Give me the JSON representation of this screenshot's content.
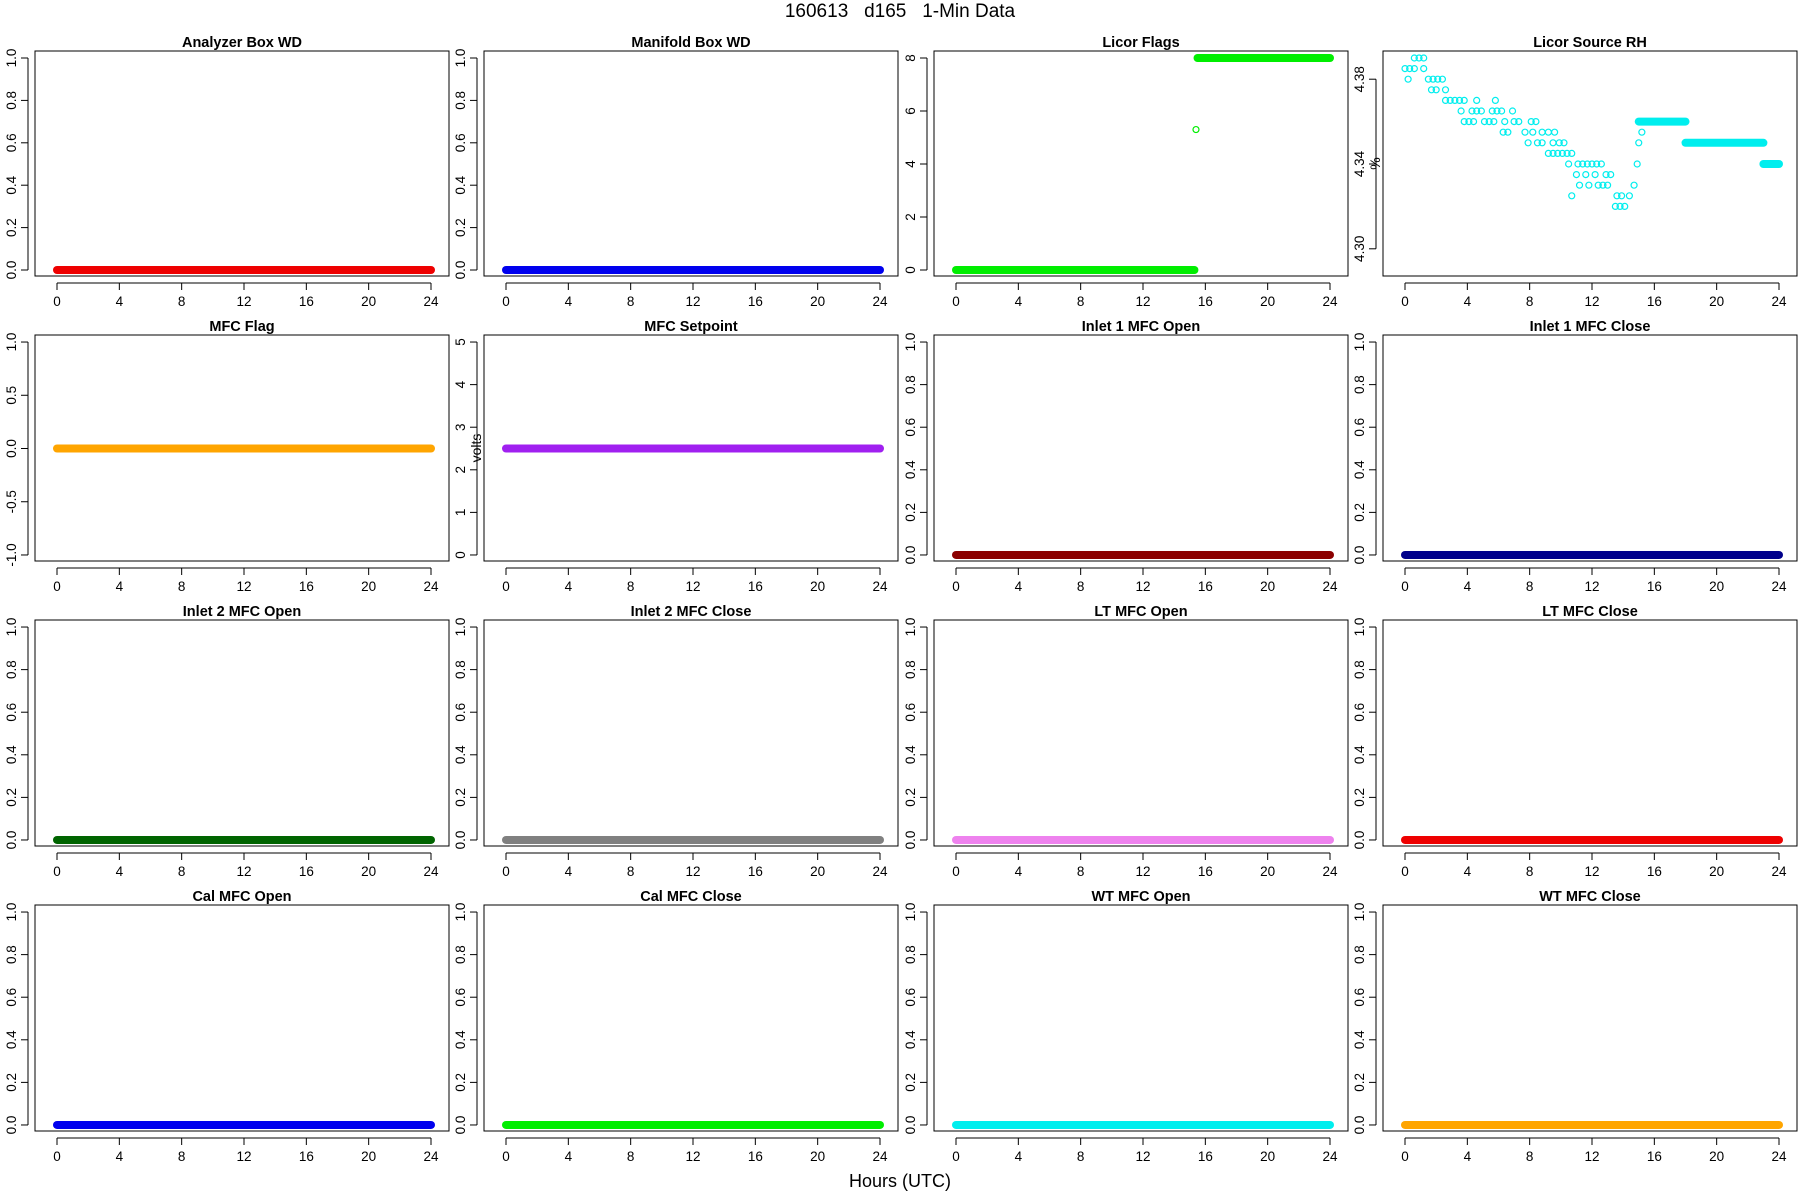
{
  "title": "160613   d165   1-Min Data",
  "x_axis_title": "Hours (UTC)",
  "chart_data": [
    {
      "type": "scatter",
      "title": "Analyzer Box WD",
      "ylabel": "",
      "color": "#ee0000",
      "xlim": [
        0,
        24
      ],
      "ylim": [
        0,
        1
      ],
      "yticks": [
        "0.0",
        "0.2",
        "0.4",
        "0.6",
        "0.8",
        "1.0"
      ],
      "xticks": [
        "0",
        "4",
        "8",
        "12",
        "16",
        "20",
        "24"
      ],
      "segments": [
        {
          "x0": 0,
          "x1": 24,
          "y": 0
        }
      ],
      "points": []
    },
    {
      "type": "scatter",
      "title": "Manifold Box WD",
      "ylabel": "",
      "color": "#0000ee",
      "xlim": [
        0,
        24
      ],
      "ylim": [
        0,
        1
      ],
      "yticks": [
        "0.0",
        "0.2",
        "0.4",
        "0.6",
        "0.8",
        "1.0"
      ],
      "xticks": [
        "0",
        "4",
        "8",
        "12",
        "16",
        "20",
        "24"
      ],
      "segments": [
        {
          "x0": 0,
          "x1": 24,
          "y": 0
        }
      ],
      "points": []
    },
    {
      "type": "scatter",
      "title": "Licor Flags",
      "ylabel": "",
      "color": "#00ee00",
      "xlim": [
        0,
        24
      ],
      "ylim": [
        0,
        8
      ],
      "yticks": [
        "0",
        "2",
        "4",
        "6",
        "8"
      ],
      "xticks": [
        "0",
        "4",
        "8",
        "12",
        "16",
        "20",
        "24"
      ],
      "segments": [
        {
          "x0": 0,
          "x1": 15.3,
          "y": 0
        },
        {
          "x0": 15.5,
          "x1": 24,
          "y": 8
        }
      ],
      "points": [
        {
          "x": 15.4,
          "y": 5.3
        }
      ]
    },
    {
      "type": "scatter",
      "title": "Licor Source RH",
      "ylabel": "%",
      "color": "#00eeee",
      "xlim": [
        0,
        24
      ],
      "ylim": [
        4.29,
        4.39
      ],
      "yticks": [
        "4.30",
        "4.34",
        "4.38"
      ],
      "xticks": [
        "0",
        "4",
        "8",
        "12",
        "16",
        "20",
        "24"
      ],
      "segments": [
        {
          "x0": 15,
          "x1": 18,
          "y": 4.36
        },
        {
          "x0": 18,
          "x1": 23,
          "y": 4.35
        },
        {
          "x0": 23,
          "x1": 24,
          "y": 4.34
        }
      ],
      "points": [
        {
          "x": 0,
          "y": 4.385
        },
        {
          "x": 0.3,
          "y": 4.385
        },
        {
          "x": 0.6,
          "y": 4.385
        },
        {
          "x": 0.2,
          "y": 4.38
        },
        {
          "x": 0.6,
          "y": 4.39
        },
        {
          "x": 0.9,
          "y": 4.39
        },
        {
          "x": 1.2,
          "y": 4.39
        },
        {
          "x": 1.2,
          "y": 4.385
        },
        {
          "x": 1.5,
          "y": 4.38
        },
        {
          "x": 1.8,
          "y": 4.38
        },
        {
          "x": 2.1,
          "y": 4.38
        },
        {
          "x": 2.4,
          "y": 4.38
        },
        {
          "x": 1.7,
          "y": 4.375
        },
        {
          "x": 2.0,
          "y": 4.375
        },
        {
          "x": 2.6,
          "y": 4.375
        },
        {
          "x": 2.6,
          "y": 4.37
        },
        {
          "x": 2.9,
          "y": 4.37
        },
        {
          "x": 3.2,
          "y": 4.37
        },
        {
          "x": 3.5,
          "y": 4.37
        },
        {
          "x": 3.8,
          "y": 4.37
        },
        {
          "x": 4.6,
          "y": 4.37
        },
        {
          "x": 5.8,
          "y": 4.37
        },
        {
          "x": 3.6,
          "y": 4.365
        },
        {
          "x": 4.3,
          "y": 4.365
        },
        {
          "x": 4.6,
          "y": 4.365
        },
        {
          "x": 4.9,
          "y": 4.365
        },
        {
          "x": 5.6,
          "y": 4.365
        },
        {
          "x": 5.9,
          "y": 4.365
        },
        {
          "x": 6.2,
          "y": 4.365
        },
        {
          "x": 6.9,
          "y": 4.365
        },
        {
          "x": 3.8,
          "y": 4.36
        },
        {
          "x": 4.1,
          "y": 4.36
        },
        {
          "x": 4.4,
          "y": 4.36
        },
        {
          "x": 5.1,
          "y": 4.36
        },
        {
          "x": 5.4,
          "y": 4.36
        },
        {
          "x": 5.7,
          "y": 4.36
        },
        {
          "x": 6.4,
          "y": 4.36
        },
        {
          "x": 7.0,
          "y": 4.36
        },
        {
          "x": 7.3,
          "y": 4.36
        },
        {
          "x": 8.1,
          "y": 4.36
        },
        {
          "x": 8.4,
          "y": 4.36
        },
        {
          "x": 6.3,
          "y": 4.355
        },
        {
          "x": 6.6,
          "y": 4.355
        },
        {
          "x": 7.7,
          "y": 4.355
        },
        {
          "x": 8.2,
          "y": 4.355
        },
        {
          "x": 8.8,
          "y": 4.355
        },
        {
          "x": 9.2,
          "y": 4.355
        },
        {
          "x": 9.6,
          "y": 4.355
        },
        {
          "x": 7.9,
          "y": 4.35
        },
        {
          "x": 8.5,
          "y": 4.35
        },
        {
          "x": 8.8,
          "y": 4.35
        },
        {
          "x": 9.5,
          "y": 4.35
        },
        {
          "x": 9.9,
          "y": 4.35
        },
        {
          "x": 10.2,
          "y": 4.35
        },
        {
          "x": 9.2,
          "y": 4.345
        },
        {
          "x": 9.5,
          "y": 4.345
        },
        {
          "x": 9.8,
          "y": 4.345
        },
        {
          "x": 10.1,
          "y": 4.345
        },
        {
          "x": 10.4,
          "y": 4.345
        },
        {
          "x": 10.7,
          "y": 4.345
        },
        {
          "x": 10.5,
          "y": 4.34
        },
        {
          "x": 11.1,
          "y": 4.34
        },
        {
          "x": 11.4,
          "y": 4.34
        },
        {
          "x": 11.7,
          "y": 4.34
        },
        {
          "x": 12.0,
          "y": 4.34
        },
        {
          "x": 12.3,
          "y": 4.34
        },
        {
          "x": 12.6,
          "y": 4.34
        },
        {
          "x": 11.0,
          "y": 4.335
        },
        {
          "x": 11.6,
          "y": 4.335
        },
        {
          "x": 12.2,
          "y": 4.335
        },
        {
          "x": 12.9,
          "y": 4.335
        },
        {
          "x": 13.2,
          "y": 4.335
        },
        {
          "x": 11.2,
          "y": 4.33
        },
        {
          "x": 11.8,
          "y": 4.33
        },
        {
          "x": 12.4,
          "y": 4.33
        },
        {
          "x": 12.7,
          "y": 4.33
        },
        {
          "x": 13.0,
          "y": 4.33
        },
        {
          "x": 10.7,
          "y": 4.325
        },
        {
          "x": 13.5,
          "y": 4.32
        },
        {
          "x": 13.8,
          "y": 4.32
        },
        {
          "x": 14.1,
          "y": 4.32
        },
        {
          "x": 13.6,
          "y": 4.325
        },
        {
          "x": 13.9,
          "y": 4.325
        },
        {
          "x": 14.4,
          "y": 4.325
        },
        {
          "x": 14.7,
          "y": 4.33
        },
        {
          "x": 14.9,
          "y": 4.34
        },
        {
          "x": 15.0,
          "y": 4.35
        },
        {
          "x": 15.2,
          "y": 4.355
        }
      ]
    },
    {
      "type": "scatter",
      "title": "MFC Flag",
      "ylabel": "",
      "color": "#ffa500",
      "xlim": [
        0,
        24
      ],
      "ylim": [
        -1,
        1
      ],
      "yticks": [
        "-1.0",
        "-0.5",
        "0.0",
        "0.5",
        "1.0"
      ],
      "xticks": [
        "0",
        "4",
        "8",
        "12",
        "16",
        "20",
        "24"
      ],
      "segments": [
        {
          "x0": 0,
          "x1": 24,
          "y": 0
        }
      ],
      "points": []
    },
    {
      "type": "scatter",
      "title": "MFC Setpoint",
      "ylabel": "volts",
      "color": "#a020f0",
      "xlim": [
        0,
        24
      ],
      "ylim": [
        0,
        5
      ],
      "yticks": [
        "0",
        "1",
        "2",
        "3",
        "4",
        "5"
      ],
      "xticks": [
        "0",
        "4",
        "8",
        "12",
        "16",
        "20",
        "24"
      ],
      "segments": [
        {
          "x0": 0,
          "x1": 24,
          "y": 2.5
        }
      ],
      "points": []
    },
    {
      "type": "scatter",
      "title": "Inlet 1 MFC Open",
      "ylabel": "",
      "color": "#8b0000",
      "xlim": [
        0,
        24
      ],
      "ylim": [
        0,
        1
      ],
      "yticks": [
        "0.0",
        "0.2",
        "0.4",
        "0.6",
        "0.8",
        "1.0"
      ],
      "xticks": [
        "0",
        "4",
        "8",
        "12",
        "16",
        "20",
        "24"
      ],
      "segments": [
        {
          "x0": 0,
          "x1": 24,
          "y": 0
        }
      ],
      "points": []
    },
    {
      "type": "scatter",
      "title": "Inlet 1 MFC Close",
      "ylabel": "",
      "color": "#00008b",
      "xlim": [
        0,
        24
      ],
      "ylim": [
        0,
        1
      ],
      "yticks": [
        "0.0",
        "0.2",
        "0.4",
        "0.6",
        "0.8",
        "1.0"
      ],
      "xticks": [
        "0",
        "4",
        "8",
        "12",
        "16",
        "20",
        "24"
      ],
      "segments": [
        {
          "x0": 0,
          "x1": 24,
          "y": 0
        }
      ],
      "points": []
    },
    {
      "type": "scatter",
      "title": "Inlet 2 MFC Open",
      "ylabel": "",
      "color": "#006400",
      "xlim": [
        0,
        24
      ],
      "ylim": [
        0,
        1
      ],
      "yticks": [
        "0.0",
        "0.2",
        "0.4",
        "0.6",
        "0.8",
        "1.0"
      ],
      "xticks": [
        "0",
        "4",
        "8",
        "12",
        "16",
        "20",
        "24"
      ],
      "segments": [
        {
          "x0": 0,
          "x1": 24,
          "y": 0
        }
      ],
      "points": []
    },
    {
      "type": "scatter",
      "title": "Inlet 2 MFC Close",
      "ylabel": "",
      "color": "#808080",
      "xlim": [
        0,
        24
      ],
      "ylim": [
        0,
        1
      ],
      "yticks": [
        "0.0",
        "0.2",
        "0.4",
        "0.6",
        "0.8",
        "1.0"
      ],
      "xticks": [
        "0",
        "4",
        "8",
        "12",
        "16",
        "20",
        "24"
      ],
      "segments": [
        {
          "x0": 0,
          "x1": 24,
          "y": 0
        }
      ],
      "points": []
    },
    {
      "type": "scatter",
      "title": "LT MFC Open",
      "ylabel": "",
      "color": "#ee82ee",
      "xlim": [
        0,
        24
      ],
      "ylim": [
        0,
        1
      ],
      "yticks": [
        "0.0",
        "0.2",
        "0.4",
        "0.6",
        "0.8",
        "1.0"
      ],
      "xticks": [
        "0",
        "4",
        "8",
        "12",
        "16",
        "20",
        "24"
      ],
      "segments": [
        {
          "x0": 0,
          "x1": 24,
          "y": 0
        }
      ],
      "points": []
    },
    {
      "type": "scatter",
      "title": "LT MFC Close",
      "ylabel": "",
      "color": "#ee0000",
      "xlim": [
        0,
        24
      ],
      "ylim": [
        0,
        1
      ],
      "yticks": [
        "0.0",
        "0.2",
        "0.4",
        "0.6",
        "0.8",
        "1.0"
      ],
      "xticks": [
        "0",
        "4",
        "8",
        "12",
        "16",
        "20",
        "24"
      ],
      "segments": [
        {
          "x0": 0,
          "x1": 24,
          "y": 0
        }
      ],
      "points": []
    },
    {
      "type": "scatter",
      "title": "Cal MFC Open",
      "ylabel": "",
      "color": "#0000ee",
      "xlim": [
        0,
        24
      ],
      "ylim": [
        0,
        1
      ],
      "yticks": [
        "0.0",
        "0.2",
        "0.4",
        "0.6",
        "0.8",
        "1.0"
      ],
      "xticks": [
        "0",
        "4",
        "8",
        "12",
        "16",
        "20",
        "24"
      ],
      "segments": [
        {
          "x0": 0,
          "x1": 24,
          "y": 0
        }
      ],
      "points": []
    },
    {
      "type": "scatter",
      "title": "Cal MFC Close",
      "ylabel": "",
      "color": "#00ee00",
      "xlim": [
        0,
        24
      ],
      "ylim": [
        0,
        1
      ],
      "yticks": [
        "0.0",
        "0.2",
        "0.4",
        "0.6",
        "0.8",
        "1.0"
      ],
      "xticks": [
        "0",
        "4",
        "8",
        "12",
        "16",
        "20",
        "24"
      ],
      "segments": [
        {
          "x0": 0,
          "x1": 24,
          "y": 0
        }
      ],
      "points": []
    },
    {
      "type": "scatter",
      "title": "WT MFC Open",
      "ylabel": "",
      "color": "#00eeee",
      "xlim": [
        0,
        24
      ],
      "ylim": [
        0,
        1
      ],
      "yticks": [
        "0.0",
        "0.2",
        "0.4",
        "0.6",
        "0.8",
        "1.0"
      ],
      "xticks": [
        "0",
        "4",
        "8",
        "12",
        "16",
        "20",
        "24"
      ],
      "segments": [
        {
          "x0": 0,
          "x1": 24,
          "y": 0
        }
      ],
      "points": []
    },
    {
      "type": "scatter",
      "title": "WT MFC Close",
      "ylabel": "",
      "color": "#ffa500",
      "xlim": [
        0,
        24
      ],
      "ylim": [
        0,
        1
      ],
      "yticks": [
        "0.0",
        "0.2",
        "0.4",
        "0.6",
        "0.8",
        "1.0"
      ],
      "xticks": [
        "0",
        "4",
        "8",
        "12",
        "16",
        "20",
        "24"
      ],
      "segments": [
        {
          "x0": 0,
          "x1": 24,
          "y": 0
        }
      ],
      "points": []
    }
  ]
}
